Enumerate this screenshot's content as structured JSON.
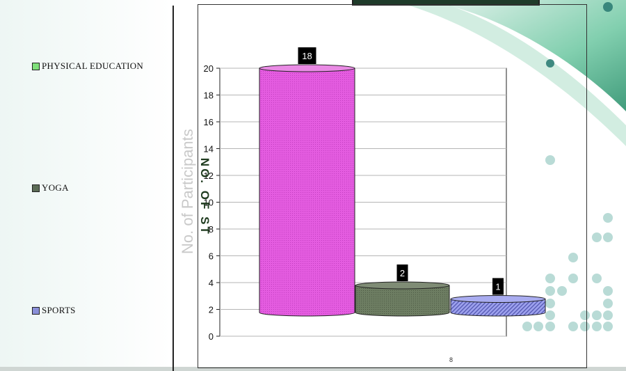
{
  "legend": {
    "items": [
      {
        "label": "PHYSICAL EDUCATION",
        "color": "#7fe07a"
      },
      {
        "label": "YOGA",
        "color": "#5b6b55"
      },
      {
        "label": "SPORTS",
        "color": "#8a8fd8"
      }
    ]
  },
  "page_number": "8",
  "chart_data": {
    "type": "bar",
    "three_d": true,
    "categories": [
      "PHYSICAL EDUCATION",
      "YOGA",
      "SPORTS"
    ],
    "values": [
      18,
      2,
      1
    ],
    "data_labels": [
      "18",
      "2",
      "1"
    ],
    "colors": [
      "#e45ce0",
      "#6d7d62",
      "#8f92e6"
    ],
    "ylabel": "No. of Participants",
    "ylabel_overlay": "NO. OF ST",
    "ylim": [
      0,
      20
    ],
    "yticks": [
      0,
      2,
      4,
      6,
      8,
      10,
      12,
      14,
      16,
      18,
      20
    ],
    "grid": true,
    "legend_position": "left"
  }
}
